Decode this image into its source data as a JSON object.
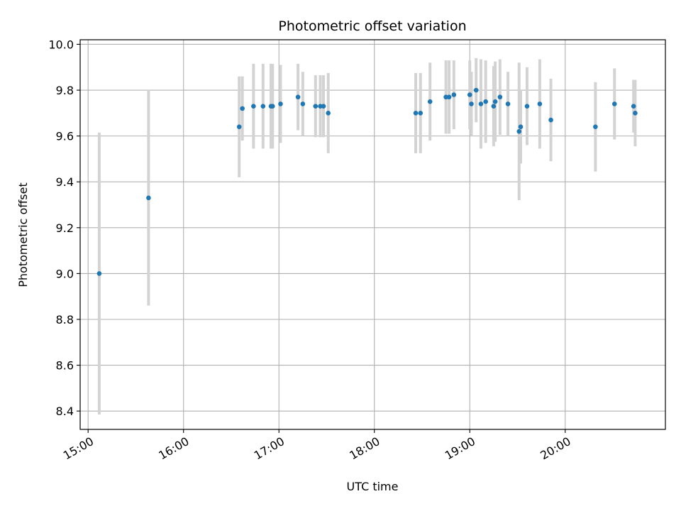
{
  "chart_data": {
    "type": "scatter",
    "title": "Photometric offset variation",
    "xlabel": "UTC time",
    "ylabel": "Photometric offset",
    "x_ticks": [
      "15:00",
      "16:00",
      "17:00",
      "18:00",
      "19:00",
      "20:00"
    ],
    "y_ticks": [
      "8.4",
      "8.6",
      "8.8",
      "9.0",
      "9.2",
      "9.4",
      "9.6",
      "9.8",
      "10.0"
    ],
    "xlim": [
      "14:55",
      "21:03"
    ],
    "ylim": [
      8.32,
      10.02
    ],
    "grid": true,
    "marker_color": "#1f77b4",
    "errorbar_color": "#d3d3d3",
    "series": [
      {
        "points": [
          {
            "x": "15:07",
            "y": 9.0,
            "err": 0.615
          },
          {
            "x": "15:38",
            "y": 9.33,
            "err": 0.47
          },
          {
            "x": "16:35",
            "y": 9.64,
            "err": 0.22
          },
          {
            "x": "16:37",
            "y": 9.72,
            "err": 0.14
          },
          {
            "x": "16:44",
            "y": 9.73,
            "err": 0.185
          },
          {
            "x": "16:50",
            "y": 9.73,
            "err": 0.185
          },
          {
            "x": "16:55",
            "y": 9.73,
            "err": 0.185
          },
          {
            "x": "16:56",
            "y": 9.73,
            "err": 0.185
          },
          {
            "x": "17:01",
            "y": 9.74,
            "err": 0.17
          },
          {
            "x": "17:12",
            "y": 9.77,
            "err": 0.145
          },
          {
            "x": "17:15",
            "y": 9.74,
            "err": 0.14
          },
          {
            "x": "17:23",
            "y": 9.73,
            "err": 0.135
          },
          {
            "x": "17:26",
            "y": 9.73,
            "err": 0.135
          },
          {
            "x": "17:28",
            "y": 9.73,
            "err": 0.135
          },
          {
            "x": "17:31",
            "y": 9.7,
            "err": 0.175
          },
          {
            "x": "18:26",
            "y": 9.7,
            "err": 0.175
          },
          {
            "x": "18:29",
            "y": 9.7,
            "err": 0.175
          },
          {
            "x": "18:35",
            "y": 9.75,
            "err": 0.17
          },
          {
            "x": "18:45",
            "y": 9.77,
            "err": 0.16
          },
          {
            "x": "18:47",
            "y": 9.77,
            "err": 0.16
          },
          {
            "x": "18:50",
            "y": 9.78,
            "err": 0.15
          },
          {
            "x": "19:00",
            "y": 9.78,
            "err": 0.15
          },
          {
            "x": "19:01",
            "y": 9.74,
            "err": 0.14
          },
          {
            "x": "19:04",
            "y": 9.8,
            "err": 0.14
          },
          {
            "x": "19:07",
            "y": 9.74,
            "err": 0.195
          },
          {
            "x": "19:10",
            "y": 9.75,
            "err": 0.18
          },
          {
            "x": "19:15",
            "y": 9.73,
            "err": 0.175
          },
          {
            "x": "19:16",
            "y": 9.75,
            "err": 0.175
          },
          {
            "x": "19:19",
            "y": 9.77,
            "err": 0.165
          },
          {
            "x": "19:24",
            "y": 9.74,
            "err": 0.14
          },
          {
            "x": "19:31",
            "y": 9.62,
            "err": 0.3
          },
          {
            "x": "19:32",
            "y": 9.64,
            "err": 0.16
          },
          {
            "x": "19:36",
            "y": 9.73,
            "err": 0.17
          },
          {
            "x": "19:44",
            "y": 9.74,
            "err": 0.195
          },
          {
            "x": "19:51",
            "y": 9.67,
            "err": 0.18
          },
          {
            "x": "20:19",
            "y": 9.64,
            "err": 0.195
          },
          {
            "x": "20:31",
            "y": 9.74,
            "err": 0.155
          },
          {
            "x": "20:43",
            "y": 9.73,
            "err": 0.115
          },
          {
            "x": "20:44",
            "y": 9.7,
            "err": 0.145
          }
        ]
      }
    ]
  }
}
